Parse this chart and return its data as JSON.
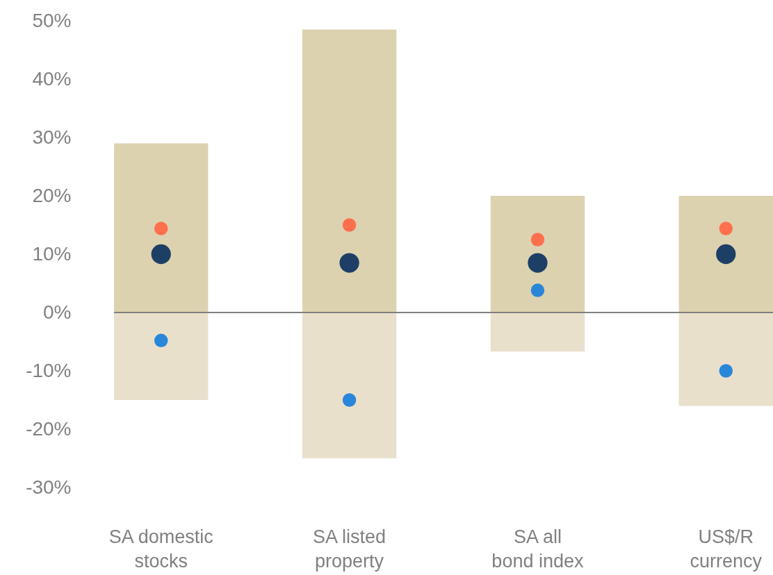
{
  "chart_data": {
    "type": "bar",
    "stacked": true,
    "categories": [
      "SA domestic stocks",
      "SA listed property",
      "SA all bond index",
      "US$/R currency"
    ],
    "series": [
      {
        "type": "bar",
        "color": "#ddd2b0",
        "values": [
          29,
          48.5,
          20,
          20
        ]
      },
      {
        "type": "bar",
        "color": "#e9e0cc",
        "values": [
          -15,
          -25,
          -6.7,
          -16
        ]
      },
      {
        "type": "scatter",
        "color": "#fe6f4e",
        "x": [
          "SA domestic stocks",
          "SA listed property",
          "SA all bond index",
          "US$/R currency"
        ],
        "values": [
          14.4,
          15,
          12.5,
          14.4
        ]
      },
      {
        "type": "scatter",
        "color": "#1d3f66",
        "x": [
          "SA domestic stocks",
          "SA listed property",
          "SA all bond index",
          "US$/R currency"
        ],
        "values": [
          10,
          8.5,
          8.5,
          10
        ]
      },
      {
        "type": "scatter",
        "color": "#2a86d9",
        "x": [
          "SA domestic stocks",
          "SA listed property",
          "SA all bond index",
          "US$/R currency"
        ],
        "values": [
          -4.8,
          -15,
          3.8,
          -10
        ]
      }
    ],
    "ylim": [
      -30,
      50
    ],
    "yticks": [
      {
        "value": -30,
        "label": "-30%"
      },
      {
        "value": -20,
        "label": "-20%"
      },
      {
        "value": -10,
        "label": "-10%"
      },
      {
        "value": 0,
        "label": "0%"
      },
      {
        "value": 10,
        "label": "10%"
      },
      {
        "value": 20,
        "label": "20%"
      },
      {
        "value": 30,
        "label": "30%"
      },
      {
        "value": 40,
        "label": "40%"
      },
      {
        "value": 50,
        "label": "50%"
      }
    ],
    "grid": false,
    "ref_lines": [
      {
        "axis": "y",
        "value": 0,
        "color": "#808080"
      }
    ]
  }
}
